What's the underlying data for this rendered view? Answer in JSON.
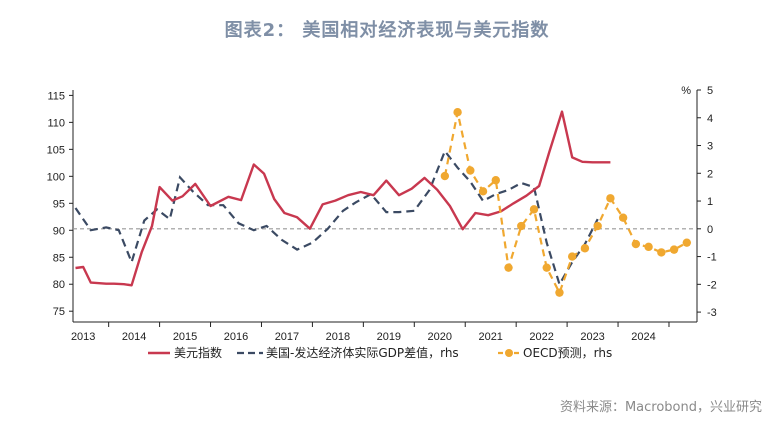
{
  "title": "图表2： 美国相对经济表现与美元指数",
  "source": "资料来源：Macrobond，兴业研究",
  "rhs_unit": "%",
  "colors": {
    "usd": "#c8384f",
    "gdp": "#3b4a63",
    "oecd": "#f0a830",
    "zero": "#999999"
  },
  "chart_data": {
    "type": "line",
    "x_categories": [
      "2013",
      "2014",
      "2015",
      "2016",
      "2017",
      "2018",
      "2019",
      "2020",
      "2021",
      "2022",
      "2023",
      "2024"
    ],
    "x_range": [
      2012.8,
      2025.05
    ],
    "y_left": {
      "ticks": [
        75,
        80,
        85,
        90,
        95,
        100,
        105,
        110,
        115
      ],
      "lim": [
        73,
        116
      ]
    },
    "y_right": {
      "ticks": [
        -3,
        -2,
        -1,
        0,
        1,
        2,
        3,
        4,
        5
      ],
      "lim": [
        -3.357,
        5.0
      ],
      "unit": "%"
    },
    "reference_line_right": 0,
    "series": [
      {
        "name": "美元指数",
        "axis": "left",
        "style": "solid",
        "x": [
          2012.85,
          2013.0,
          2013.15,
          2013.45,
          2013.6,
          2013.8,
          2013.95,
          2014.15,
          2014.35,
          2014.5,
          2014.75,
          2014.95,
          2015.2,
          2015.5,
          2015.85,
          2016.1,
          2016.35,
          2016.55,
          2016.75,
          2016.95,
          2017.2,
          2017.45,
          2017.7,
          2017.95,
          2018.2,
          2018.45,
          2018.7,
          2018.95,
          2019.2,
          2019.45,
          2019.7,
          2019.95,
          2020.2,
          2020.45,
          2020.7,
          2020.95,
          2021.2,
          2021.45,
          2021.7,
          2021.95,
          2022.15,
          2022.4,
          2022.6,
          2022.8,
          2023.0,
          2023.2,
          2023.35
        ],
        "y": [
          83.0,
          83.2,
          80.3,
          80.1,
          80.1,
          80.0,
          79.8,
          86.0,
          90.8,
          98.0,
          95.5,
          96.3,
          98.6,
          94.5,
          96.2,
          95.6,
          102.2,
          100.5,
          95.8,
          93.2,
          92.4,
          90.3,
          94.8,
          95.5,
          96.5,
          97.1,
          96.5,
          99.2,
          96.5,
          97.7,
          99.7,
          97.5,
          94.5,
          90.2,
          93.2,
          92.8,
          93.5,
          95.0,
          96.4,
          98.2,
          104.5,
          112.0,
          103.5,
          102.7,
          102.6,
          102.6,
          102.6
        ]
      },
      {
        "name": "美国-发达经济体实际GDP差值，rhs",
        "axis": "right",
        "style": "dashed",
        "x": [
          2012.85,
          2013.15,
          2013.45,
          2013.7,
          2013.95,
          2014.2,
          2014.45,
          2014.7,
          2014.9,
          2015.15,
          2015.45,
          2015.75,
          2016.05,
          2016.35,
          2016.6,
          2016.9,
          2017.2,
          2017.5,
          2017.8,
          2018.1,
          2018.35,
          2018.65,
          2018.95,
          2019.2,
          2019.5,
          2019.8,
          2020.1,
          2020.35,
          2020.6,
          2020.85,
          2021.1,
          2021.35,
          2021.6,
          2021.85,
          2022.1,
          2022.35,
          2022.6,
          2022.85,
          2023.1
        ],
        "y": [
          0.75,
          -0.05,
          0.05,
          -0.05,
          -1.2,
          0.3,
          0.7,
          0.35,
          1.85,
          1.35,
          0.85,
          0.85,
          0.2,
          -0.05,
          0.1,
          -0.4,
          -0.75,
          -0.5,
          0.0,
          0.65,
          0.95,
          1.25,
          0.6,
          0.6,
          0.65,
          1.4,
          2.8,
          2.2,
          1.7,
          1.0,
          1.25,
          1.4,
          1.65,
          1.5,
          -0.5,
          -2.0,
          -1.2,
          -0.55,
          0.35
        ]
      },
      {
        "name": "OECD预测，rhs",
        "axis": "right",
        "style": "dashed-markers",
        "x": [
          2020.1,
          2020.35,
          2020.6,
          2020.85,
          2021.1,
          2021.35,
          2021.6,
          2021.85,
          2022.1,
          2022.35,
          2022.6,
          2022.85,
          2023.1,
          2023.35,
          2023.6,
          2023.85,
          2024.1,
          2024.35,
          2024.6,
          2024.85
        ],
        "y": [
          1.9,
          4.2,
          2.1,
          1.35,
          1.75,
          -1.4,
          0.1,
          0.7,
          -1.4,
          -2.3,
          -1.0,
          -0.7,
          0.1,
          1.1,
          0.4,
          -0.55,
          -0.65,
          -0.85,
          -0.75,
          -0.5
        ]
      }
    ],
    "legend_position": "bottom"
  }
}
